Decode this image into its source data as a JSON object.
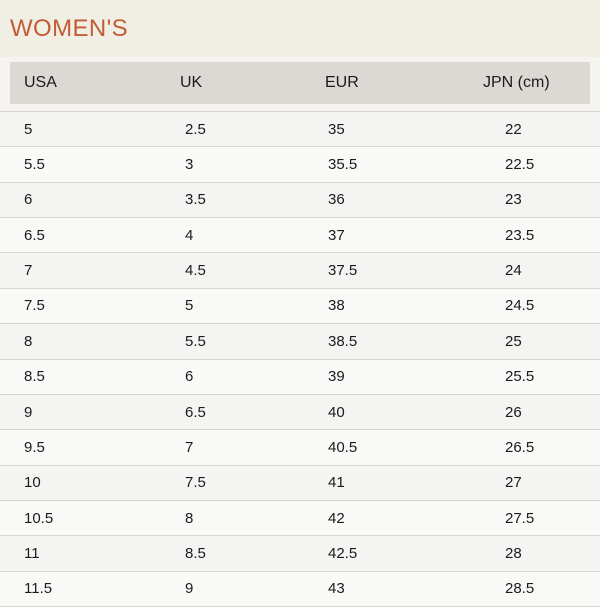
{
  "header": {
    "title": "WOMEN'S"
  },
  "table": {
    "columns": [
      "USA",
      "UK",
      "EUR",
      "JPN (cm)"
    ],
    "rows": [
      [
        "5",
        "2.5",
        "35",
        "22"
      ],
      [
        "5.5",
        "3",
        "35.5",
        "22.5"
      ],
      [
        "6",
        "3.5",
        "36",
        "23"
      ],
      [
        "6.5",
        "4",
        "37",
        "23.5"
      ],
      [
        "7",
        "4.5",
        "37.5",
        "24"
      ],
      [
        "7.5",
        "5",
        "38",
        "24.5"
      ],
      [
        "8",
        "5.5",
        "38.5",
        "25"
      ],
      [
        "8.5",
        "6",
        "39",
        "25.5"
      ],
      [
        "9",
        "6.5",
        "40",
        "26"
      ],
      [
        "9.5",
        "7",
        "40.5",
        "26.5"
      ],
      [
        "10",
        "7.5",
        "41",
        "27"
      ],
      [
        "10.5",
        "8",
        "42",
        "27.5"
      ],
      [
        "11",
        "8.5",
        "42.5",
        "28"
      ],
      [
        "11.5",
        "9",
        "43",
        "28.5"
      ]
    ]
  },
  "colors": {
    "accent_title": "#c25b38",
    "hero_background": "#f1eee3",
    "page_background": "#f5f4f1",
    "header_row_background": "#dcd8d3",
    "row_odd_background": "#f4f4f2",
    "row_even_background": "#f9f9f7",
    "row_divider": "#d8d6d2",
    "text": "#1b1b1b"
  }
}
